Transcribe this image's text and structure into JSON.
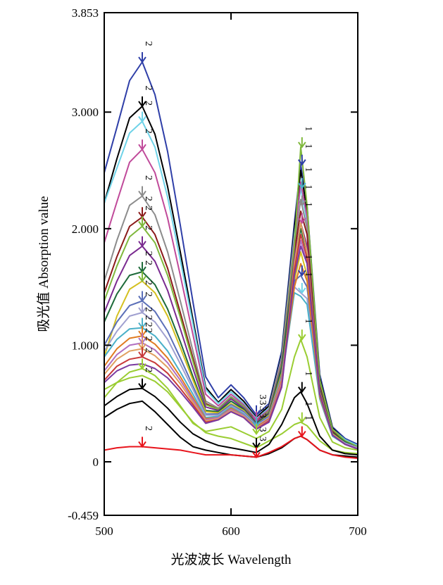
{
  "chart_data": {
    "type": "line",
    "xlabel": "光波波长 Wavelength",
    "ylabel": "吸光值 Absorption value",
    "xlim": [
      500,
      700
    ],
    "ylim": [
      -0.459,
      3.853
    ],
    "x_ticks": [
      500,
      600,
      700
    ],
    "y_ticks": [
      {
        "value": 3.853,
        "label": "3.853"
      },
      {
        "value": 3.0,
        "label": "3.000"
      },
      {
        "value": 2.0,
        "label": "2.000"
      },
      {
        "value": 1.0,
        "label": "1.000"
      },
      {
        "value": 0,
        "label": "0"
      },
      {
        "value": -0.459,
        "label": "-0.459"
      }
    ],
    "grid": false,
    "x": [
      500,
      510,
      520,
      530,
      540,
      550,
      560,
      570,
      580,
      590,
      600,
      610,
      620,
      630,
      640,
      650,
      655,
      660,
      670,
      680,
      690,
      700
    ],
    "series": [
      {
        "color": "#2f3fa8",
        "values": [
          2.48,
          2.87,
          3.27,
          3.43,
          3.15,
          2.66,
          2.03,
          1.37,
          0.73,
          0.55,
          0.66,
          0.55,
          0.4,
          0.5,
          0.95,
          2.05,
          2.55,
          2.2,
          0.75,
          0.3,
          0.2,
          0.15
        ]
      },
      {
        "color": "#000000",
        "values": [
          2.22,
          2.6,
          2.95,
          3.05,
          2.81,
          2.36,
          1.8,
          1.22,
          0.64,
          0.51,
          0.62,
          0.52,
          0.38,
          0.48,
          0.92,
          2.0,
          2.5,
          2.15,
          0.72,
          0.29,
          0.19,
          0.14
        ]
      },
      {
        "color": "#6fd3e8",
        "values": [
          2.22,
          2.52,
          2.82,
          2.92,
          2.7,
          2.27,
          1.73,
          1.18,
          0.62,
          0.5,
          0.6,
          0.5,
          0.37,
          0.46,
          0.9,
          1.95,
          2.35,
          2.05,
          0.7,
          0.28,
          0.19,
          0.14
        ]
      },
      {
        "color": "#c04a9a",
        "values": [
          1.88,
          2.23,
          2.57,
          2.68,
          2.48,
          2.09,
          1.6,
          1.09,
          0.58,
          0.48,
          0.58,
          0.49,
          0.36,
          0.45,
          0.88,
          1.9,
          2.4,
          2.1,
          0.68,
          0.27,
          0.18,
          0.13
        ]
      },
      {
        "color": "#8c8c8c",
        "values": [
          1.55,
          1.9,
          2.2,
          2.28,
          2.12,
          1.8,
          1.38,
          0.95,
          0.52,
          0.46,
          0.56,
          0.48,
          0.35,
          0.44,
          0.86,
          1.85,
          2.25,
          2.0,
          0.66,
          0.26,
          0.18,
          0.13
        ]
      },
      {
        "color": "#8b1a1a",
        "values": [
          1.45,
          1.76,
          2.02,
          2.1,
          1.95,
          1.66,
          1.28,
          0.89,
          0.5,
          0.45,
          0.55,
          0.47,
          0.35,
          0.43,
          0.84,
          1.8,
          2.15,
          1.95,
          0.65,
          0.26,
          0.17,
          0.13
        ]
      },
      {
        "color": "#7fb83c",
        "values": [
          1.38,
          1.68,
          1.93,
          2.02,
          1.88,
          1.6,
          1.24,
          0.86,
          0.49,
          0.45,
          0.55,
          0.47,
          0.34,
          0.43,
          0.84,
          1.85,
          2.7,
          2.2,
          0.7,
          0.28,
          0.18,
          0.13
        ]
      },
      {
        "color": "#7a2a90",
        "values": [
          1.28,
          1.55,
          1.77,
          1.85,
          1.72,
          1.47,
          1.14,
          0.8,
          0.47,
          0.44,
          0.54,
          0.46,
          0.34,
          0.42,
          0.82,
          1.75,
          2.05,
          1.85,
          0.63,
          0.25,
          0.17,
          0.12
        ]
      },
      {
        "color": "#1e6b3a",
        "values": [
          1.2,
          1.44,
          1.6,
          1.63,
          1.52,
          1.31,
          1.03,
          0.73,
          0.44,
          0.43,
          0.52,
          0.45,
          0.33,
          0.41,
          0.8,
          1.7,
          2.0,
          1.8,
          0.62,
          0.25,
          0.17,
          0.12
        ]
      },
      {
        "color": "#d4c020",
        "values": [
          0.9,
          1.25,
          1.48,
          1.55,
          1.45,
          1.25,
          0.98,
          0.7,
          0.43,
          0.42,
          0.5,
          0.44,
          0.32,
          0.4,
          0.76,
          1.55,
          1.8,
          1.6,
          0.58,
          0.24,
          0.16,
          0.12
        ]
      },
      {
        "color": "#5b6fb8",
        "values": [
          1.0,
          1.2,
          1.34,
          1.38,
          1.29,
          1.12,
          0.89,
          0.65,
          0.41,
          0.41,
          0.49,
          0.43,
          0.32,
          0.39,
          0.74,
          1.55,
          1.6,
          1.5,
          0.56,
          0.23,
          0.16,
          0.12
        ]
      },
      {
        "color": "#a0a0d0",
        "values": [
          0.95,
          1.12,
          1.25,
          1.28,
          1.2,
          1.05,
          0.84,
          0.62,
          0.4,
          0.4,
          0.48,
          0.42,
          0.31,
          0.38,
          0.72,
          1.5,
          1.45,
          1.4,
          0.55,
          0.23,
          0.16,
          0.12
        ]
      },
      {
        "color": "#4ab0c8",
        "values": [
          0.9,
          1.05,
          1.14,
          1.15,
          1.08,
          0.95,
          0.77,
          0.58,
          0.38,
          0.39,
          0.47,
          0.41,
          0.3,
          0.37,
          0.7,
          1.45,
          1.42,
          1.35,
          0.54,
          0.22,
          0.15,
          0.11
        ]
      },
      {
        "color": "#e07a20",
        "values": [
          0.82,
          0.97,
          1.06,
          1.08,
          1.01,
          0.89,
          0.73,
          0.55,
          0.37,
          0.38,
          0.46,
          0.4,
          0.3,
          0.37,
          0.7,
          1.5,
          1.7,
          1.55,
          0.56,
          0.23,
          0.15,
          0.11
        ]
      },
      {
        "color": "#b06fc0",
        "values": [
          0.78,
          0.92,
          1.0,
          1.02,
          0.96,
          0.85,
          0.7,
          0.53,
          0.36,
          0.38,
          0.45,
          0.4,
          0.29,
          0.36,
          0.68,
          1.6,
          1.9,
          1.7,
          0.58,
          0.23,
          0.15,
          0.11
        ]
      },
      {
        "color": "#e0a060",
        "values": [
          0.75,
          0.88,
          0.95,
          0.97,
          0.91,
          0.81,
          0.67,
          0.51,
          0.35,
          0.37,
          0.44,
          0.39,
          0.29,
          0.35,
          0.66,
          1.7,
          2.05,
          1.8,
          0.6,
          0.24,
          0.15,
          0.11
        ]
      },
      {
        "color": "#c83a3a",
        "values": [
          0.7,
          0.82,
          0.88,
          0.9,
          0.85,
          0.76,
          0.63,
          0.49,
          0.34,
          0.36,
          0.43,
          0.38,
          0.28,
          0.35,
          0.65,
          1.65,
          1.95,
          1.75,
          0.59,
          0.23,
          0.15,
          0.11
        ]
      },
      {
        "color": "#7a3aa0",
        "values": [
          0.68,
          0.78,
          0.83,
          0.84,
          0.8,
          0.72,
          0.6,
          0.47,
          0.33,
          0.36,
          0.43,
          0.38,
          0.28,
          0.34,
          0.64,
          1.6,
          1.85,
          1.7,
          0.58,
          0.23,
          0.15,
          0.11
        ]
      },
      {
        "color": "#9acd32",
        "values": [
          0.55,
          0.68,
          0.77,
          0.8,
          0.74,
          0.63,
          0.48,
          0.33,
          0.26,
          0.28,
          0.3,
          0.25,
          0.2,
          0.26,
          0.45,
          0.9,
          1.05,
          0.9,
          0.38,
          0.17,
          0.12,
          0.1
        ]
      },
      {
        "color": "#9acd32",
        "values": [
          0.62,
          0.68,
          0.72,
          0.74,
          0.69,
          0.6,
          0.47,
          0.34,
          0.25,
          0.22,
          0.2,
          0.16,
          0.12,
          0.18,
          0.24,
          0.32,
          0.34,
          0.31,
          0.18,
          0.1,
          0.08,
          0.07
        ]
      },
      {
        "color": "#000000",
        "values": [
          0.48,
          0.56,
          0.62,
          0.63,
          0.56,
          0.46,
          0.34,
          0.24,
          0.18,
          0.14,
          0.12,
          0.1,
          0.08,
          0.15,
          0.32,
          0.55,
          0.6,
          0.5,
          0.22,
          0.1,
          0.07,
          0.06
        ]
      },
      {
        "color": "#000000",
        "values": [
          0.38,
          0.45,
          0.5,
          0.52,
          0.43,
          0.32,
          0.21,
          0.13,
          0.1,
          0.08,
          0.06,
          0.05,
          0.04,
          0.07,
          0.12,
          0.2,
          0.22,
          0.19,
          0.1,
          0.06,
          0.05,
          0.04
        ]
      },
      {
        "color": "#e8141c",
        "values": [
          0.1,
          0.12,
          0.13,
          0.13,
          0.12,
          0.11,
          0.1,
          0.08,
          0.06,
          0.06,
          0.06,
          0.05,
          0.04,
          0.08,
          0.13,
          0.2,
          0.22,
          0.19,
          0.1,
          0.06,
          0.04,
          0.03
        ]
      }
    ],
    "markers": [
      {
        "x": 530,
        "y": 3.43,
        "label": "2",
        "color": "#2f3fa8"
      },
      {
        "x": 530,
        "y": 3.05,
        "label": "2",
        "color": "#000000"
      },
      {
        "x": 530,
        "y": 2.92,
        "label": "2",
        "color": "#6fd3e8"
      },
      {
        "x": 530,
        "y": 2.68,
        "label": "2",
        "color": "#c04a9a"
      },
      {
        "x": 530,
        "y": 2.28,
        "label": "2",
        "color": "#8c8c8c"
      },
      {
        "x": 530,
        "y": 2.1,
        "label": "2",
        "color": "#8b1a1a"
      },
      {
        "x": 530,
        "y": 2.02,
        "label": "2",
        "color": "#7fb83c"
      },
      {
        "x": 530,
        "y": 1.85,
        "label": "2",
        "color": "#7a2a90"
      },
      {
        "x": 530,
        "y": 1.63,
        "label": "2",
        "color": "#1e6b3a"
      },
      {
        "x": 530,
        "y": 1.55,
        "label": "2",
        "color": "#7fb83c"
      },
      {
        "x": 530,
        "y": 1.38,
        "label": "2",
        "color": "#5b6fb8"
      },
      {
        "x": 530,
        "y": 1.28,
        "label": "2",
        "color": "#a0a0d0"
      },
      {
        "x": 530,
        "y": 1.15,
        "label": "2",
        "color": "#4ab0c8"
      },
      {
        "x": 530,
        "y": 1.08,
        "label": "2",
        "color": "#e07a20"
      },
      {
        "x": 530,
        "y": 1.02,
        "label": "2",
        "color": "#b06fc0"
      },
      {
        "x": 530,
        "y": 0.97,
        "label": "2",
        "color": "#e0a060"
      },
      {
        "x": 530,
        "y": 0.9,
        "label": "2",
        "color": "#c83a3a"
      },
      {
        "x": 530,
        "y": 0.8,
        "label": "2",
        "color": "#9acd32"
      },
      {
        "x": 530,
        "y": 0.63,
        "label": "2",
        "color": "#000000"
      },
      {
        "x": 530,
        "y": 0.13,
        "label": "2",
        "color": "#e8141c"
      },
      {
        "x": 656,
        "y": 2.7,
        "label": "1",
        "color": "#7fb83c"
      },
      {
        "x": 656,
        "y": 2.55,
        "label": "1",
        "color": "#2f3fa8"
      },
      {
        "x": 656,
        "y": 2.35,
        "label": "1",
        "color": "#4ab0c8"
      },
      {
        "x": 656,
        "y": 2.2,
        "label": "1",
        "color": "#8c8c8c"
      },
      {
        "x": 656,
        "y": 2.05,
        "label": "1",
        "color": "#c04a9a"
      },
      {
        "x": 656,
        "y": 1.6,
        "label": "1",
        "color": "#2f3fa8"
      },
      {
        "x": 656,
        "y": 1.45,
        "label": "1",
        "color": "#6fd3e8"
      },
      {
        "x": 656,
        "y": 1.05,
        "label": "1",
        "color": "#9acd32"
      },
      {
        "x": 656,
        "y": 0.6,
        "label": "1",
        "color": "#000000"
      },
      {
        "x": 656,
        "y": 0.34,
        "label": "1",
        "color": "#9acd32"
      },
      {
        "x": 656,
        "y": 0.22,
        "label": "1",
        "color": "#e8141c"
      },
      {
        "x": 620,
        "y": 0.4,
        "label": "3",
        "color": "#2f3fa8"
      },
      {
        "x": 620,
        "y": 0.35,
        "label": "3",
        "color": "#c04a9a"
      },
      {
        "x": 620,
        "y": 0.3,
        "label": "3",
        "color": "#4ab0c8"
      },
      {
        "x": 620,
        "y": 0.24,
        "label": "3",
        "color": "#9acd32"
      },
      {
        "x": 620,
        "y": 0.12,
        "label": "3",
        "color": "#000000"
      },
      {
        "x": 620,
        "y": 0.04,
        "label": "3",
        "color": "#e8141c"
      }
    ]
  }
}
